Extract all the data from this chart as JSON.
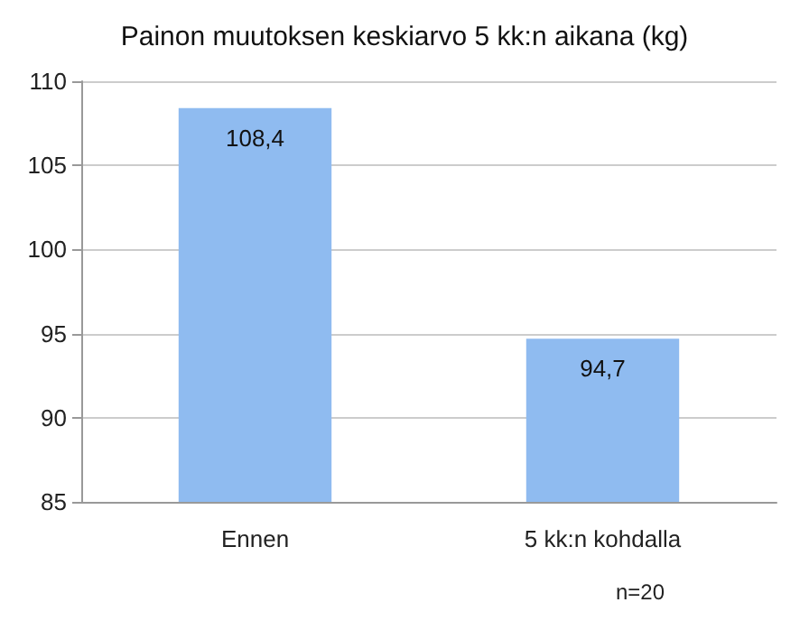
{
  "chart_data": {
    "type": "bar",
    "title": "Painon muutoksen keskiarvo 5 kk:n aikana (kg)",
    "categories": [
      "Ennen",
      "5 kk:n kohdalla"
    ],
    "values": [
      108.4,
      94.7
    ],
    "value_labels": [
      "108,4",
      "94,7"
    ],
    "color": "#8fbbf0",
    "ylim": [
      85,
      110
    ],
    "yticks": [
      85,
      90,
      95,
      100,
      105,
      110
    ],
    "grid": "y",
    "annotations": [
      "n=20"
    ]
  }
}
